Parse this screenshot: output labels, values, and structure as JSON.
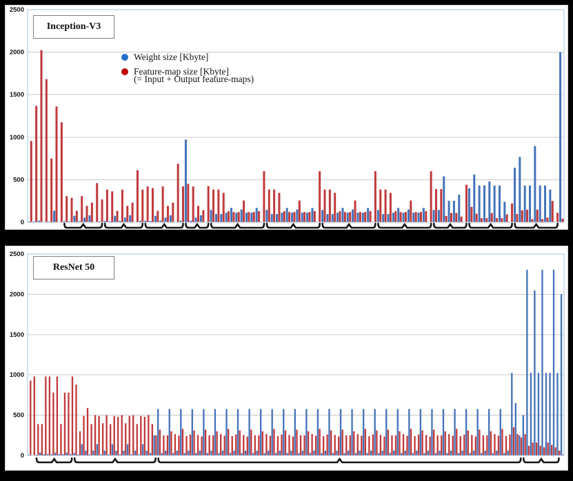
{
  "page": {
    "background": "#000000"
  },
  "chart_data": [
    {
      "type": "bar",
      "title": "Inception-V3",
      "ylim": [
        0,
        2500
      ],
      "yticks": [
        0,
        500,
        1000,
        1500,
        2000,
        2500
      ],
      "grid": true,
      "legend": {
        "position": "top-center",
        "entries": [
          {
            "label": "Weight size [Kbyte]",
            "color": "#2271c9"
          },
          {
            "label": "Feature-map size [Kbyte]",
            "sublabel": "(= Input + Output feature-maps)",
            "color": "#c00000"
          }
        ]
      },
      "series": [
        {
          "name": "Weight size [Kbyte]",
          "color": "#4472b8",
          "values": [
            1,
            9,
            18,
            0,
            5,
            135,
            0,
            12,
            9,
            75,
            12,
            54,
            81,
            0,
            6,
            16,
            12,
            75,
            16,
            54,
            81,
            0,
            16,
            18,
            14,
            75,
            18,
            54,
            81,
            0,
            18,
            972,
            18,
            54,
            81,
            0,
            144,
            96,
            96,
            112,
            168,
            112,
            150,
            112,
            112,
            168,
            0,
            144,
            96,
            96,
            112,
            168,
            112,
            150,
            112,
            112,
            168,
            0,
            144,
            96,
            96,
            112,
            168,
            112,
            150,
            112,
            112,
            168,
            0,
            144,
            96,
            96,
            112,
            168,
            112,
            150,
            112,
            112,
            168,
            0,
            144,
            144,
            540,
            252,
            252,
            324,
            0,
            400,
            560,
            432,
            432,
            480,
            432,
            432,
            240,
            0,
            640,
            768,
            432,
            432,
            896,
            432,
            432,
            384,
            0,
            2000
          ]
        },
        {
          "name": "Feature-map size [Kbyte]",
          "color": "#c0393b",
          "values": [
            956,
            1369,
            2025,
            1683,
            749,
            1361,
            1175,
            307,
            287,
            134,
            307,
            192,
            230,
            460,
            268,
            383,
            363,
            134,
            383,
            192,
            230,
            612,
            383,
            421,
            401,
            134,
            421,
            192,
            230,
            688,
            421,
            452,
            421,
            192,
            142,
            425,
            385,
            385,
            345,
            130,
            120,
            120,
            255,
            120,
            120,
            130,
            600,
            385,
            385,
            345,
            130,
            120,
            120,
            255,
            120,
            120,
            130,
            600,
            385,
            385,
            345,
            130,
            120,
            120,
            255,
            120,
            120,
            130,
            600,
            385,
            385,
            345,
            130,
            120,
            120,
            255,
            120,
            120,
            130,
            600,
            390,
            390,
            74,
            108,
            108,
            66,
            440,
            180,
            100,
            48,
            48,
            108,
            48,
            48,
            92,
            220,
            97,
            139,
            147,
            36,
            147,
            36,
            55,
            250,
            111,
            42
          ]
        }
      ],
      "brace_groups": [
        [
          7,
          15
        ],
        [
          15,
          23
        ],
        [
          23,
          31
        ],
        [
          31,
          36
        ],
        [
          36,
          47
        ],
        [
          47,
          58
        ],
        [
          58,
          69
        ],
        [
          69,
          80
        ],
        [
          80,
          87
        ],
        [
          87,
          96
        ],
        [
          96,
          105
        ]
      ]
    },
    {
      "type": "bar",
      "title": "ResNet 50",
      "ylim": [
        0,
        2500
      ],
      "yticks": [
        0,
        500,
        1000,
        1500,
        2000,
        2500
      ],
      "grid": true,
      "series": [
        {
          "name": "Weight size [Kbyte]",
          "color": "#4472b8",
          "values": [
            9,
            0,
            4,
            36,
            16,
            16,
            16,
            36,
            16,
            16,
            36,
            16,
            30,
            12,
            140,
            60,
            12,
            60,
            140,
            12,
            60,
            12,
            140,
            60,
            12,
            60,
            140,
            12,
            60,
            12,
            140,
            60,
            30,
            250,
            576,
            30,
            60,
            576,
            30,
            60,
            576,
            30,
            60,
            576,
            30,
            60,
            576,
            30,
            60,
            576,
            30,
            60,
            576,
            30,
            60,
            576,
            30,
            60,
            576,
            30,
            60,
            576,
            30,
            60,
            576,
            30,
            60,
            576,
            30,
            60,
            576,
            30,
            60,
            576,
            30,
            60,
            576,
            30,
            60,
            576,
            30,
            60,
            576,
            30,
            60,
            576,
            30,
            60,
            576,
            30,
            60,
            576,
            30,
            60,
            576,
            30,
            60,
            576,
            30,
            60,
            576,
            30,
            60,
            576,
            30,
            60,
            576,
            30,
            60,
            576,
            30,
            60,
            576,
            30,
            60,
            576,
            30,
            60,
            576,
            30,
            60,
            576,
            30,
            60,
            576,
            30,
            60,
            1024,
            650,
            250,
            500,
            2304,
            1024,
            2048,
            1024,
            2304,
            1024,
            1024,
            2304,
            1024,
            2000
          ]
        },
        {
          "name": "Feature-map size [Kbyte]",
          "color": "#c0393b",
          "values": [
            930,
            980,
            390,
            390,
            980,
            980,
            780,
            980,
            390,
            780,
            780,
            980,
            880,
            300,
            490,
            590,
            390,
            500,
            490,
            400,
            500,
            390,
            490,
            480,
            500,
            400,
            490,
            500,
            390,
            490,
            480,
            500,
            390,
            250,
            320,
            250,
            250,
            300,
            265,
            245,
            330,
            240,
            260,
            310,
            255,
            235,
            320,
            250,
            250,
            300,
            265,
            245,
            330,
            240,
            260,
            310,
            255,
            235,
            320,
            250,
            250,
            300,
            265,
            245,
            330,
            240,
            260,
            310,
            255,
            235,
            320,
            250,
            250,
            300,
            265,
            245,
            330,
            240,
            260,
            310,
            255,
            235,
            320,
            250,
            250,
            300,
            265,
            245,
            330,
            240,
            260,
            310,
            255,
            235,
            320,
            250,
            250,
            300,
            265,
            245,
            330,
            240,
            260,
            310,
            255,
            235,
            320,
            250,
            250,
            300,
            265,
            245,
            330,
            240,
            260,
            310,
            255,
            235,
            320,
            250,
            250,
            300,
            265,
            245,
            330,
            240,
            260,
            350,
            265,
            222,
            265,
            120,
            160,
            160,
            120,
            100,
            160,
            130,
            100,
            60,
            10
          ]
        }
      ],
      "brace_groups": [
        [
          2,
          12
        ],
        [
          12,
          34
        ],
        [
          34,
          130
        ],
        [
          130,
          140
        ]
      ]
    }
  ]
}
